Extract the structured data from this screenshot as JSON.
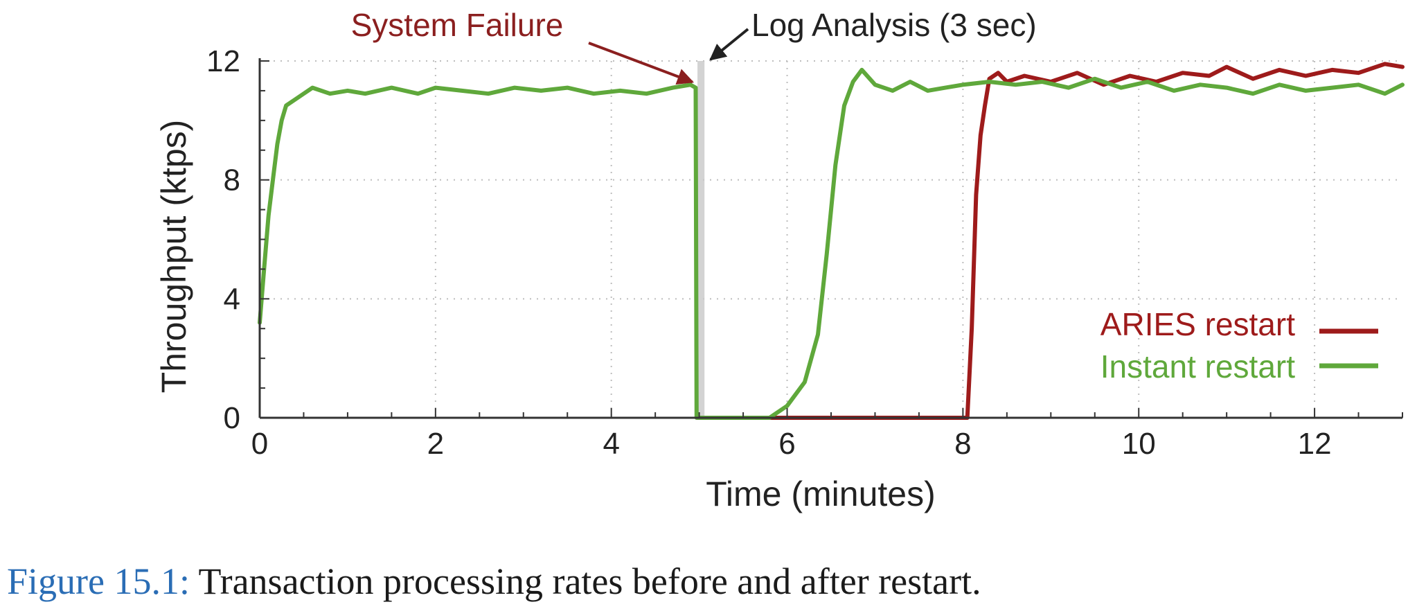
{
  "chart_data": {
    "type": "line",
    "xlabel": "Time (minutes)",
    "ylabel": "Throughput (ktps)",
    "xlim": [
      0,
      13
    ],
    "ylim": [
      0,
      12
    ],
    "xticks": [
      0,
      2,
      4,
      6,
      8,
      10,
      12
    ],
    "yticks": [
      0,
      4,
      8,
      12
    ],
    "grid": true,
    "legend_position": "bottom-right",
    "colors": {
      "aries": "#9e1b1b",
      "instant": "#5fa83b",
      "annotation_failure": "#8b1f1f",
      "annotation_log": "#222222",
      "log_marker": "#c8c8c8"
    },
    "series": [
      {
        "name": "ARIES restart",
        "color": "#9e1b1b",
        "points": [
          [
            5.0,
            0
          ],
          [
            5.8,
            0
          ],
          [
            6.5,
            0
          ],
          [
            7.5,
            0
          ],
          [
            8.05,
            0
          ],
          [
            8.1,
            3.0
          ],
          [
            8.15,
            7.5
          ],
          [
            8.2,
            9.5
          ],
          [
            8.25,
            10.5
          ],
          [
            8.3,
            11.4
          ],
          [
            8.4,
            11.6
          ],
          [
            8.5,
            11.3
          ],
          [
            8.7,
            11.5
          ],
          [
            9.0,
            11.3
          ],
          [
            9.3,
            11.6
          ],
          [
            9.6,
            11.2
          ],
          [
            9.9,
            11.5
          ],
          [
            10.2,
            11.3
          ],
          [
            10.5,
            11.6
          ],
          [
            10.8,
            11.5
          ],
          [
            11.0,
            11.8
          ],
          [
            11.3,
            11.4
          ],
          [
            11.6,
            11.7
          ],
          [
            11.9,
            11.5
          ],
          [
            12.2,
            11.7
          ],
          [
            12.5,
            11.6
          ],
          [
            12.8,
            11.9
          ],
          [
            13.0,
            11.8
          ]
        ]
      },
      {
        "name": "Instant restart",
        "color": "#5fa83b",
        "points": [
          [
            0.0,
            3.2
          ],
          [
            0.05,
            5.0
          ],
          [
            0.1,
            6.8
          ],
          [
            0.15,
            8.0
          ],
          [
            0.2,
            9.2
          ],
          [
            0.25,
            10.0
          ],
          [
            0.3,
            10.5
          ],
          [
            0.4,
            10.7
          ],
          [
            0.5,
            10.9
          ],
          [
            0.6,
            11.1
          ],
          [
            0.8,
            10.9
          ],
          [
            1.0,
            11.0
          ],
          [
            1.2,
            10.9
          ],
          [
            1.5,
            11.1
          ],
          [
            1.8,
            10.9
          ],
          [
            2.0,
            11.1
          ],
          [
            2.3,
            11.0
          ],
          [
            2.6,
            10.9
          ],
          [
            2.9,
            11.1
          ],
          [
            3.2,
            11.0
          ],
          [
            3.5,
            11.1
          ],
          [
            3.8,
            10.9
          ],
          [
            4.1,
            11.0
          ],
          [
            4.4,
            10.9
          ],
          [
            4.7,
            11.1
          ],
          [
            4.9,
            11.2
          ],
          [
            4.96,
            11.1
          ],
          [
            4.97,
            0
          ],
          [
            5.5,
            0
          ],
          [
            5.8,
            0
          ],
          [
            6.0,
            0.4
          ],
          [
            6.2,
            1.2
          ],
          [
            6.35,
            2.8
          ],
          [
            6.45,
            5.5
          ],
          [
            6.55,
            8.5
          ],
          [
            6.65,
            10.5
          ],
          [
            6.75,
            11.3
          ],
          [
            6.85,
            11.7
          ],
          [
            7.0,
            11.2
          ],
          [
            7.2,
            11.0
          ],
          [
            7.4,
            11.3
          ],
          [
            7.6,
            11.0
          ],
          [
            7.8,
            11.1
          ],
          [
            8.0,
            11.2
          ],
          [
            8.3,
            11.3
          ],
          [
            8.6,
            11.2
          ],
          [
            8.9,
            11.3
          ],
          [
            9.2,
            11.1
          ],
          [
            9.5,
            11.4
          ],
          [
            9.8,
            11.1
          ],
          [
            10.1,
            11.3
          ],
          [
            10.4,
            11.0
          ],
          [
            10.7,
            11.2
          ],
          [
            11.0,
            11.1
          ],
          [
            11.3,
            10.9
          ],
          [
            11.6,
            11.2
          ],
          [
            11.9,
            11.0
          ],
          [
            12.2,
            11.1
          ],
          [
            12.5,
            11.2
          ],
          [
            12.8,
            10.9
          ],
          [
            13.0,
            11.2
          ]
        ]
      }
    ],
    "annotations": [
      {
        "text": "System Failure",
        "target_x": 4.97,
        "target_y": 11.2
      },
      {
        "text": "Log Analysis (3 sec)",
        "target_x": 5.05,
        "target_y": 12.0
      }
    ]
  },
  "caption": {
    "number": "Figure 15.1:",
    "text": " Transaction processing rates before and after restart."
  }
}
